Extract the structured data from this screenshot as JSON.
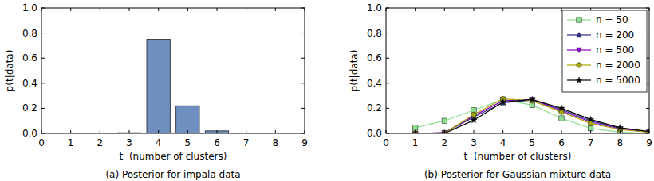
{
  "chart_data": [
    {
      "type": "bar",
      "title": "(a) Posterior for impala data",
      "x_label": "t  (number of clusters)",
      "y_label": "p(t|data)",
      "x": [
        3,
        4,
        5,
        6
      ],
      "values": [
        0.005,
        0.75,
        0.22,
        0.02
      ],
      "color": "#6f8fc0",
      "xlim": [
        0,
        9
      ],
      "xticks": [
        0,
        1,
        2,
        3,
        4,
        5,
        6,
        7,
        8,
        9
      ],
      "ylim": [
        0,
        1
      ],
      "yticks": [
        {
          "value": 0,
          "label": "0.0"
        },
        {
          "value": 0.2,
          "label": "0.2"
        },
        {
          "value": 0.4,
          "label": "0.4"
        },
        {
          "value": 0.6,
          "label": "0.6"
        },
        {
          "value": 0.8,
          "label": "0.8"
        },
        {
          "value": 1,
          "label": "1.0"
        }
      ]
    },
    {
      "type": "line",
      "title": "(b) Posterior for Gaussian mixture data",
      "x_label": "t  (number of clusters)",
      "y_label": "p(t|data)",
      "x": [
        1,
        2,
        3,
        4,
        5,
        6,
        7,
        8,
        9
      ],
      "series": [
        {
          "name": "n = 50",
          "color": "#8ee08e",
          "marker": "square",
          "values": [
            0.045,
            0.1,
            0.185,
            0.27,
            0.225,
            0.12,
            0.04,
            0.01,
            0.0
          ]
        },
        {
          "name": "n = 200",
          "color": "#2a2a8a",
          "marker": "triangle-up",
          "values": [
            0.0,
            0.005,
            0.13,
            0.245,
            0.265,
            0.19,
            0.1,
            0.04,
            0.01
          ]
        },
        {
          "name": "n = 500",
          "color": "#8a00c8",
          "marker": "triangle-down",
          "values": [
            0.0,
            0.005,
            0.14,
            0.26,
            0.27,
            0.18,
            0.09,
            0.035,
            0.01
          ]
        },
        {
          "name": "n = 2000",
          "color": "#a8a800",
          "marker": "circle",
          "values": [
            0.0,
            0.0,
            0.15,
            0.275,
            0.26,
            0.17,
            0.08,
            0.03,
            0.01
          ]
        },
        {
          "name": "n = 5000",
          "color": "#000000",
          "marker": "star",
          "values": [
            0.0,
            0.0,
            0.105,
            0.25,
            0.27,
            0.2,
            0.11,
            0.045,
            0.015
          ]
        }
      ],
      "legend": "upper right",
      "xlim": [
        0,
        9
      ],
      "xticks": [
        0,
        1,
        2,
        3,
        4,
        5,
        6,
        7,
        8,
        9
      ],
      "ylim": [
        0,
        1
      ],
      "yticks": [
        {
          "value": 0,
          "label": "0.0"
        },
        {
          "value": 0.2,
          "label": "0.2"
        },
        {
          "value": 0.4,
          "label": "0.4"
        },
        {
          "value": 0.6,
          "label": "0.6"
        },
        {
          "value": 0.8,
          "label": "0.8"
        },
        {
          "value": 1,
          "label": "1.0"
        }
      ]
    }
  ]
}
